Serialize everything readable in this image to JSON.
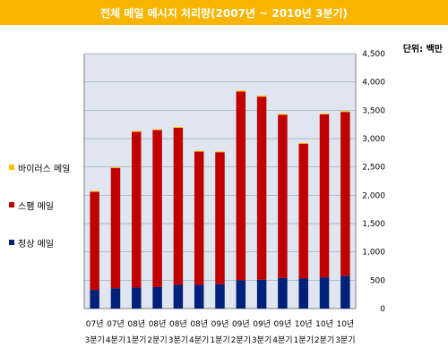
{
  "title": "전체 메일 메시지 처리량(2007년 ~ 2010년 3분기)",
  "unit_label": "단위: 백만",
  "colors": {
    "virus": "#ffc000",
    "spam": "#c00000",
    "normal": "#00207a",
    "plot_bg": "#dfe6f0",
    "grid": "#9aa6b8"
  },
  "chart_data": {
    "type": "bar",
    "stacked": true,
    "categories": [
      [
        "07년",
        "3분기"
      ],
      [
        "07년",
        "4분기"
      ],
      [
        "08년",
        "1분기"
      ],
      [
        "08년",
        "2분기"
      ],
      [
        "08년",
        "3분기"
      ],
      [
        "08년",
        "4분기"
      ],
      [
        "09년",
        "1분기"
      ],
      [
        "09년",
        "2분기"
      ],
      [
        "09년",
        "3분기"
      ],
      [
        "09년",
        "4분기"
      ],
      [
        "10년",
        "1분기"
      ],
      [
        "10년",
        "2분기"
      ],
      [
        "10년",
        "3분기"
      ]
    ],
    "series": [
      {
        "name": "정상 메일",
        "color": "#00207a",
        "values": [
          330,
          360,
          370,
          380,
          420,
          420,
          430,
          500,
          510,
          540,
          530,
          550,
          580
        ]
      },
      {
        "name": "스팸 메일",
        "color": "#c00000",
        "values": [
          1730,
          2120,
          2750,
          2770,
          2770,
          2350,
          2330,
          3330,
          3230,
          2880,
          2380,
          2880,
          2890
        ]
      },
      {
        "name": "바이러스 메일",
        "color": "#ffc000",
        "values": [
          15,
          15,
          15,
          15,
          15,
          15,
          15,
          20,
          20,
          15,
          15,
          15,
          15
        ]
      }
    ],
    "legend_order": [
      "바이러스 메일",
      "스팸 메일",
      "정상 메일"
    ],
    "ylim": [
      0,
      4500
    ],
    "yticks": [
      "0",
      "500",
      "1,000",
      "1,500",
      "2,000",
      "2,500",
      "3,000",
      "3,500",
      "4,000",
      "4,500"
    ],
    "ytick_values": [
      0,
      500,
      1000,
      1500,
      2000,
      2500,
      3000,
      3500,
      4000,
      4500
    ],
    "grid": true,
    "legend_position": "left"
  }
}
